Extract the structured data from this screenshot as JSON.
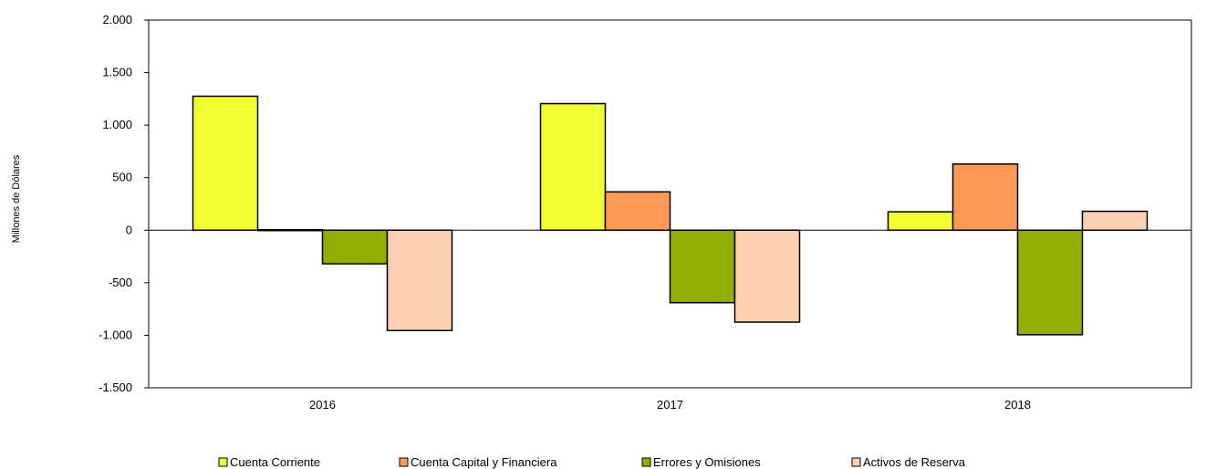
{
  "chart_data": {
    "type": "bar",
    "categories": [
      "2016",
      "2017",
      "2018"
    ],
    "series": [
      {
        "name": "Cuenta Corriente",
        "values": [
          1275,
          1205,
          175
        ],
        "color": "#F2FF33"
      },
      {
        "name": "Cuenta Capital y Financiera",
        "values": [
          5,
          365,
          630
        ],
        "color": "#FF9955"
      },
      {
        "name": "Errores y Omisiones",
        "values": [
          -320,
          -690,
          -995
        ],
        "color": "#93AD05"
      },
      {
        "name": "Activos de Reserva",
        "values": [
          -955,
          -875,
          180
        ],
        "color": "#FFD1B3"
      }
    ],
    "ylabel": "Millones de Dólares",
    "ylim": [
      -1500,
      2000
    ],
    "yticks": [
      2000,
      1500,
      1000,
      500,
      0,
      -500,
      -1000,
      -1500
    ],
    "ytick_labels": [
      "2.000",
      "1.500",
      "1.000",
      "500",
      "0",
      "-500",
      "-1.000",
      "-1.500"
    ],
    "legend_position": "bottom",
    "grid": false
  }
}
